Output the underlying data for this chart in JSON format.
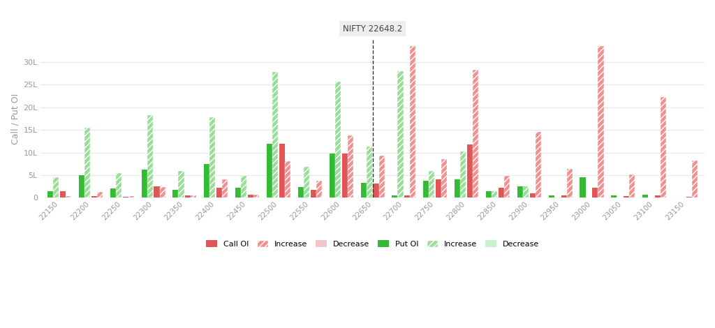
{
  "strikes": [
    22150,
    22200,
    22250,
    22300,
    22350,
    22400,
    22450,
    22500,
    22550,
    22600,
    22650,
    22700,
    22750,
    22800,
    22850,
    22900,
    22950,
    23000,
    23050,
    23100,
    23150
  ],
  "nifty_price": 22648.2,
  "nifty_label": "NIFTY 22648.2",
  "call_oi": [
    1.5,
    0.3,
    0.2,
    2.5,
    0.5,
    2.2,
    0.6,
    12.0,
    1.8,
    9.8,
    3.2,
    0.5,
    4.0,
    11.8,
    2.2,
    1.0,
    0.5,
    2.2,
    0.3,
    0.5,
    0.2
  ],
  "call_increase": [
    0.3,
    1.3,
    0.3,
    2.3,
    0.5,
    4.0,
    0.7,
    8.0,
    3.8,
    13.8,
    9.3,
    33.5,
    8.5,
    28.3,
    4.8,
    14.5,
    6.3,
    33.5,
    5.2,
    22.2,
    8.3
  ],
  "call_decrease": [
    0.0,
    0.0,
    0.0,
    0.0,
    0.0,
    0.0,
    0.0,
    0.0,
    0.0,
    0.0,
    0.0,
    0.0,
    0.0,
    0.0,
    0.0,
    0.0,
    0.0,
    0.0,
    0.0,
    0.0,
    0.0
  ],
  "put_oi": [
    1.5,
    5.0,
    2.0,
    6.2,
    1.7,
    7.5,
    2.2,
    12.0,
    2.3,
    9.8,
    3.3,
    0.5,
    3.8,
    4.0,
    1.4,
    2.5,
    0.5,
    4.5,
    0.5,
    0.6,
    0.1
  ],
  "put_increase": [
    4.5,
    15.5,
    5.4,
    18.2,
    5.9,
    17.8,
    4.8,
    27.8,
    6.8,
    25.7,
    11.3,
    28.0,
    5.9,
    10.3,
    1.5,
    2.5,
    0.0,
    0.0,
    0.0,
    0.0,
    0.0
  ],
  "put_decrease": [
    0.0,
    0.0,
    0.0,
    0.0,
    0.0,
    0.0,
    0.0,
    0.0,
    0.0,
    0.0,
    0.0,
    0.0,
    0.0,
    0.0,
    0.0,
    0.0,
    0.0,
    0.0,
    0.0,
    0.0,
    0.0
  ],
  "call_oi_color": "#e05555",
  "call_increase_color": "#f09090",
  "call_decrease_color": "#f5c6c6",
  "put_oi_color": "#33bb33",
  "put_increase_color": "#99dd99",
  "put_decrease_color": "#c8f5c8",
  "ylabel": "Call / Put OI",
  "ylim_max": 35,
  "yticks": [
    0,
    5,
    10,
    15,
    20,
    25,
    30
  ],
  "ytick_labels": [
    "0",
    "5L",
    "10L",
    "15L",
    "20L",
    "25L",
    "30L"
  ],
  "bg_color": "#ffffff",
  "grid_color": "#e8e8e8",
  "title_box_color": "#eeeeee",
  "bar_width": 0.18,
  "nifty_strike_idx": 10
}
